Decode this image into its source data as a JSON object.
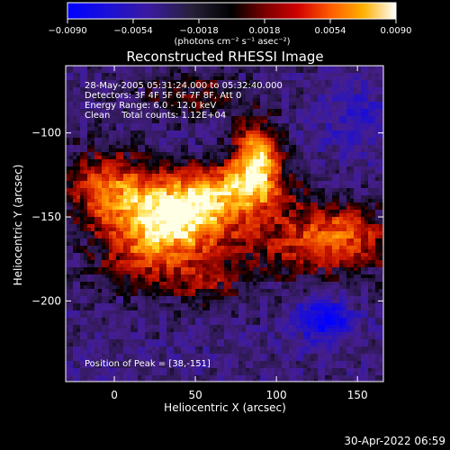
{
  "chart_data": {
    "type": "heatmap",
    "title": "Reconstructed RHESSI Image",
    "xlabel": "Heliocentric X (arcsec)",
    "ylabel": "Heliocentric Y (arcsec)",
    "xlim": [
      -30,
      166
    ],
    "ylim": [
      -248,
      -60
    ],
    "x_ticks": [
      0,
      50,
      100,
      150
    ],
    "y_ticks": [
      -100,
      -150,
      -200
    ],
    "colorbar": {
      "range": [
        -0.009,
        0.009
      ],
      "tick_values": [
        -0.009,
        -0.0054,
        -0.0018,
        0.0018,
        0.0054,
        0.009
      ],
      "tick_labels": [
        "−0.0090",
        "−0.0054",
        "−0.0018",
        "0.0018",
        "0.0054",
        "0.0090"
      ],
      "unit_label": "(photons cm⁻² s⁻¹ asec⁻²)"
    },
    "annotations": [
      "28-May-2005 05:31:24.000 to 05:32:40.000",
      "Detectors: 3F 4F 5F 6F 7F 8F, Att 0",
      "Energy Range: 6.0 - 12.0 keV",
      "Clean    Total counts: 1.12E+04"
    ],
    "peak_label": "Position of Peak = [38,-151]",
    "peak": {
      "x": 38,
      "y": -151
    },
    "grid": false
  },
  "footer": {
    "timestamp": "30-Apr-2022 06:59"
  },
  "colors": {
    "background": "#000000",
    "text": "#ffffff",
    "colormap": [
      "#0000ff",
      "#3a1a9e",
      "#222222",
      "#000000",
      "#7a0000",
      "#e02000",
      "#ff8c00",
      "#ffe040",
      "#ffffff"
    ]
  }
}
